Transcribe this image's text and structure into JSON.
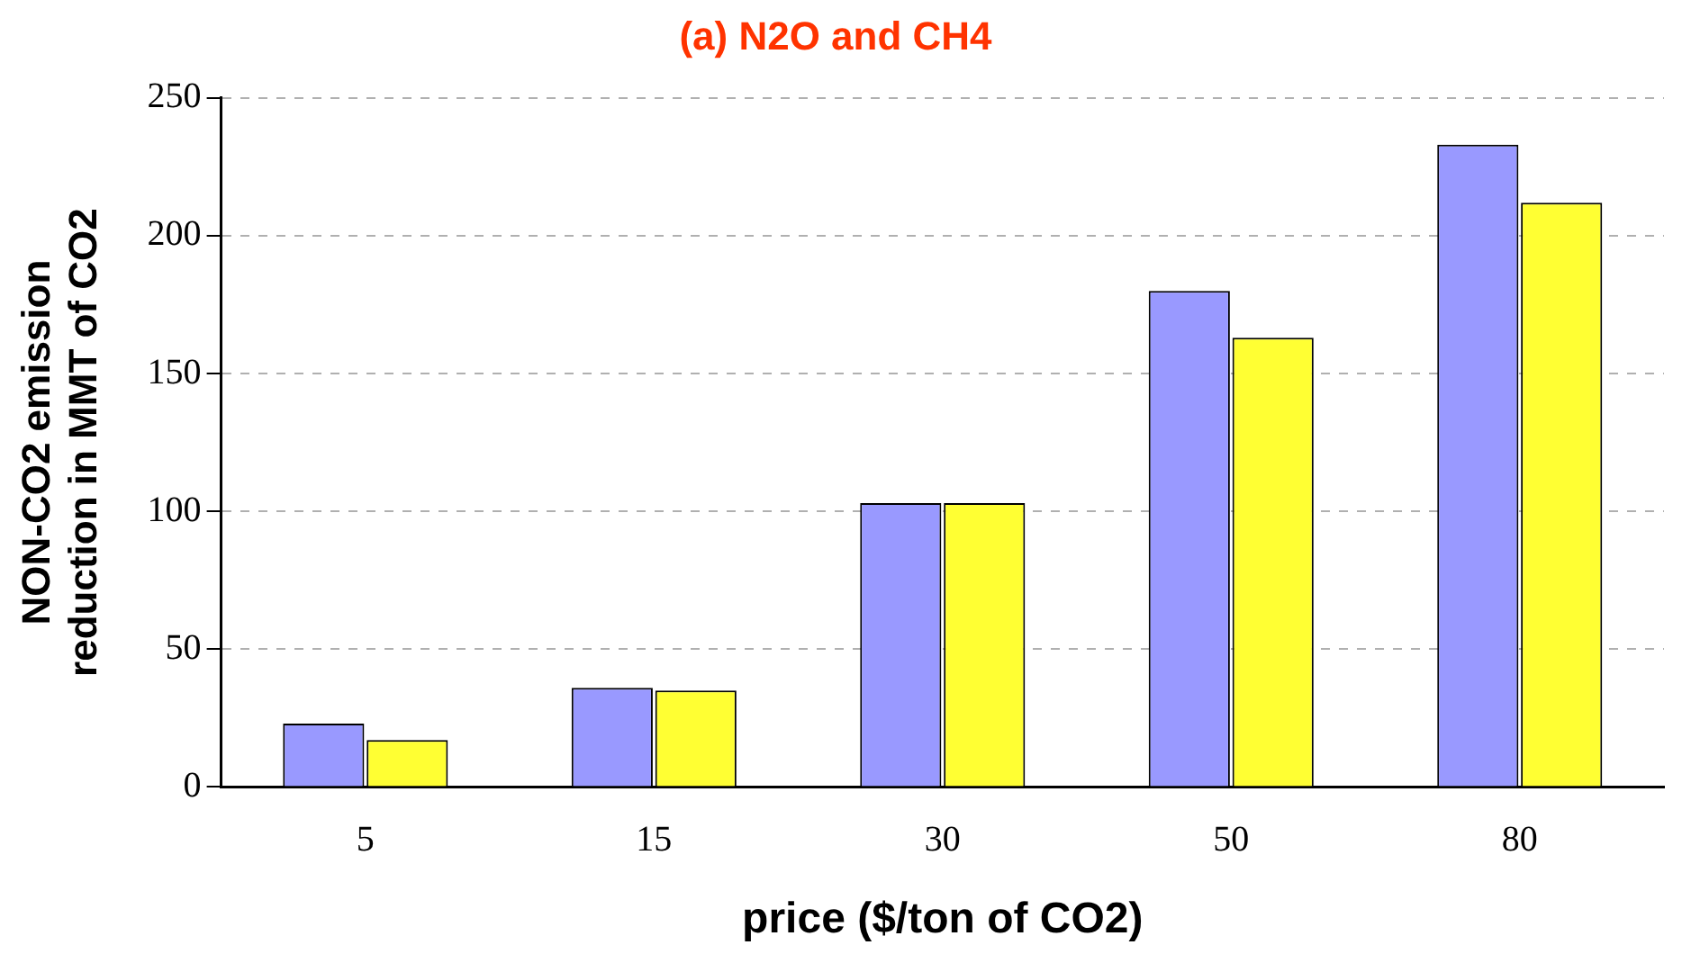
{
  "chart_data": {
    "type": "bar",
    "title": "(a) N2O and CH4",
    "xlabel": "price ($/ton of CO2)",
    "ylabel": "NON-CO2 emission reduction in MMT of CO2",
    "categories": [
      "5",
      "15",
      "30",
      "50",
      "80"
    ],
    "series": [
      {
        "color": "#9999ff",
        "values": [
          23,
          36,
          103,
          180,
          233
        ]
      },
      {
        "color": "#ffff33",
        "values": [
          17,
          35,
          103,
          163,
          212
        ]
      }
    ],
    "ylim": [
      0,
      250
    ],
    "yticks": [
      0,
      50,
      100,
      150,
      200,
      250
    ],
    "grid": "y",
    "legend": false
  }
}
